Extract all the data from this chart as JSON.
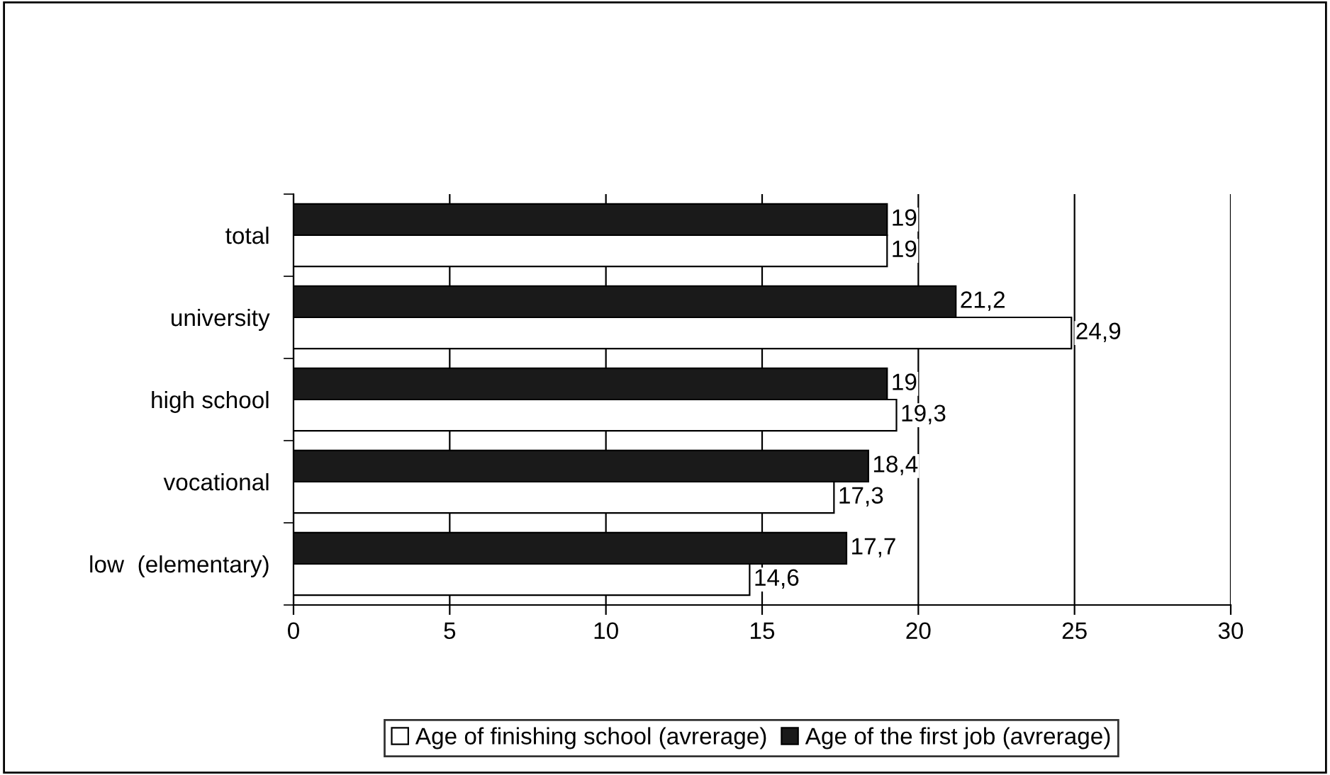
{
  "chart_data": {
    "type": "bar",
    "orientation": "horizontal",
    "categories": [
      "total",
      "university",
      "high school",
      "vocational",
      "low  (elementary)"
    ],
    "series": [
      {
        "name": "Age of finishing school (avrerage)",
        "color": "#ffffff",
        "values": [
          19,
          24.9,
          19.3,
          17.3,
          14.6
        ],
        "value_labels": [
          "19",
          "24,9",
          "19,3",
          "17,3",
          "14,6"
        ]
      },
      {
        "name": "Age of the first job (avrerage)",
        "color": "#1a1a1a",
        "values": [
          19,
          21.2,
          19,
          18.4,
          17.7
        ],
        "value_labels": [
          "19",
          "21,2",
          "19",
          "18,4",
          "17,7"
        ]
      }
    ],
    "xlim": [
      0,
      30
    ],
    "xticks": [
      0,
      5,
      10,
      15,
      20,
      25,
      30
    ],
    "grid": "x",
    "legend": "bottom"
  }
}
